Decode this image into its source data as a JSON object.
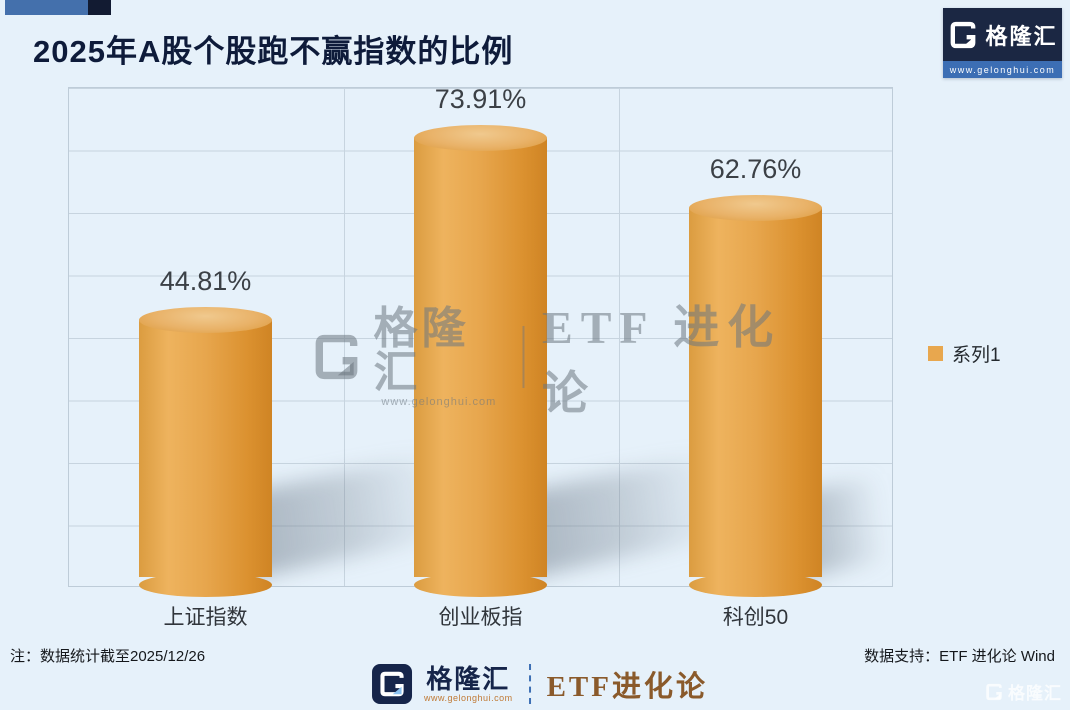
{
  "title": "2025年A股个股跑不赢指数的比例",
  "brand": {
    "name": "格隆汇",
    "url": "www.gelonghui.com",
    "tagline": "ETF进化论",
    "tagline_spaced": "ETF 进化论"
  },
  "chart_data": {
    "type": "bar",
    "style": "3d-cylinder",
    "title": "2025年A股个股跑不赢指数的比例",
    "categories": [
      "上证指数",
      "创业板指",
      "科创50"
    ],
    "series": [
      {
        "name": "系列1",
        "values": [
          44.81,
          73.91,
          62.76
        ]
      }
    ],
    "value_labels": [
      "44.81%",
      "73.91%",
      "62.76%"
    ],
    "ylim": [
      0,
      80
    ],
    "grid": "on",
    "legend_position": "right",
    "bar_color": "#E8A64C",
    "plot_background": "#E6F1FA",
    "gridline_color": "#C7D4DF"
  },
  "legend": {
    "label": "系列1"
  },
  "footer": {
    "note": "注：数据统计截至2025/12/26",
    "support": "数据支持：ETF 进化论 Wind"
  }
}
